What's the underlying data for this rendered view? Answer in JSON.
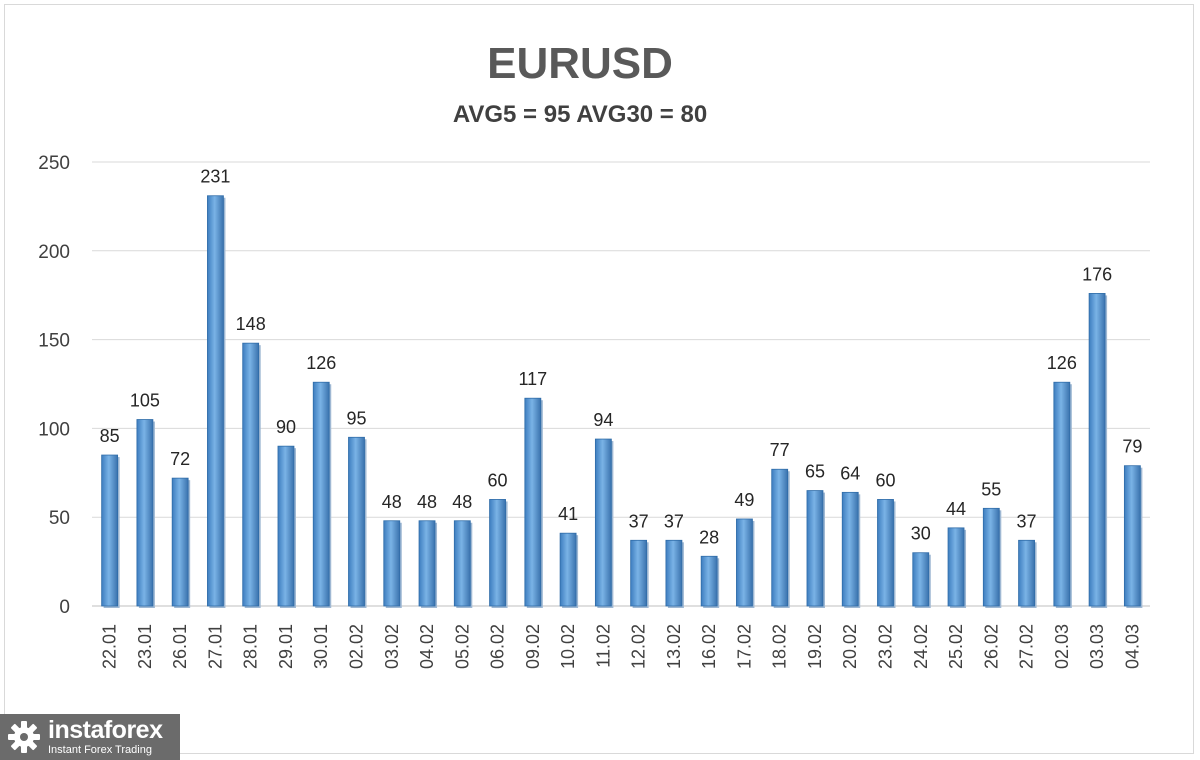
{
  "chart_data": {
    "type": "bar",
    "title": "EURUSD",
    "subtitle": "AVG5 = 95 AVG30 = 80",
    "categories": [
      "22.01",
      "23.01",
      "26.01",
      "27.01",
      "28.01",
      "29.01",
      "30.01",
      "02.02",
      "03.02",
      "04.02",
      "05.02",
      "06.02",
      "09.02",
      "10.02",
      "11.02",
      "12.02",
      "13.02",
      "16.02",
      "17.02",
      "18.02",
      "19.02",
      "20.02",
      "23.02",
      "24.02",
      "25.02",
      "26.02",
      "27.02",
      "02.03",
      "03.03",
      "04.03"
    ],
    "values": [
      85,
      105,
      72,
      231,
      148,
      90,
      126,
      95,
      48,
      48,
      48,
      60,
      117,
      41,
      94,
      37,
      37,
      28,
      49,
      77,
      65,
      64,
      60,
      30,
      44,
      55,
      37,
      126,
      176,
      79
    ],
    "ylim": [
      0,
      250
    ],
    "yticks": [
      0,
      50,
      100,
      150,
      200,
      250
    ],
    "grid": true,
    "bar_color": "#5b9bd5",
    "data_labels": true
  },
  "watermark": {
    "brand": "instaforex",
    "tagline": "Instant Forex Trading"
  }
}
